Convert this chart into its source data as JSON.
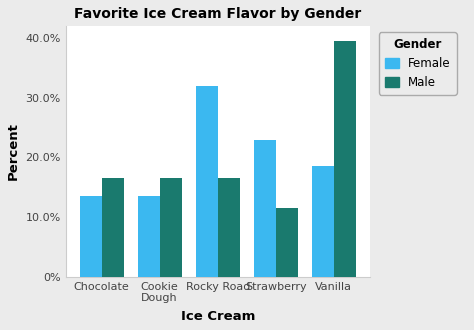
{
  "title": "Favorite Ice Cream Flavor by Gender",
  "xlabel": "Ice Cream",
  "ylabel": "Percent",
  "categories": [
    "Chocolate",
    "Cookie\nDough",
    "Rocky Road",
    "Strawberry",
    "Vanilla"
  ],
  "female_values": [
    13.5,
    13.5,
    32.0,
    23.0,
    18.5
  ],
  "male_values": [
    16.5,
    16.5,
    16.5,
    11.5,
    39.5
  ],
  "female_color": "#3BB8F0",
  "male_color": "#1A7A6E",
  "ylim": [
    0,
    42
  ],
  "yticks": [
    0,
    10,
    20,
    30,
    40
  ],
  "ytick_labels": [
    "0%",
    "10.0%",
    "20.0%",
    "30.0%",
    "40.0%"
  ],
  "legend_title": "Gender",
  "legend_labels": [
    "Female",
    "Male"
  ],
  "plot_bg_color": "#FFFFFF",
  "fig_bg_color": "#EBEBEB",
  "grid_color": "#FFFFFF",
  "title_fontsize": 10,
  "axis_label_fontsize": 9.5,
  "tick_fontsize": 8,
  "legend_fontsize": 8.5,
  "bar_width": 0.38
}
